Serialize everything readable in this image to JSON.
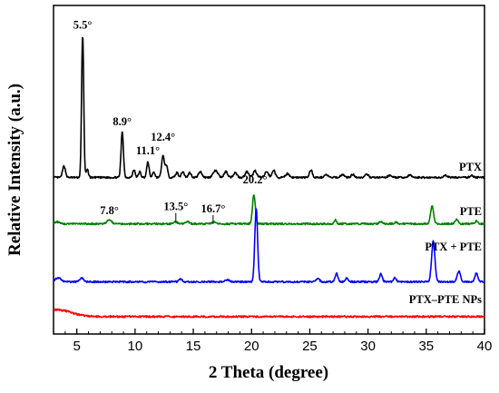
{
  "chart_data": {
    "type": "line",
    "xlabel": "2 Theta (degree)",
    "ylabel": "Relative Intensity (a.u.)",
    "xlim": [
      3,
      40
    ],
    "xticks": [
      "5",
      "10",
      "15",
      "20",
      "25",
      "30",
      "35",
      "40"
    ],
    "grid": false,
    "series": [
      {
        "name": "PTX",
        "color": "#000000",
        "baseline": 7.6,
        "peaks": [
          {
            "x": 3.9,
            "h": 0.6,
            "w": 0.12
          },
          {
            "x": 5.5,
            "h": 7.4,
            "w": 0.09
          },
          {
            "x": 5.9,
            "h": 0.4,
            "w": 0.1
          },
          {
            "x": 8.9,
            "h": 2.4,
            "w": 0.1
          },
          {
            "x": 9.9,
            "h": 0.4,
            "w": 0.1
          },
          {
            "x": 10.4,
            "h": 0.3,
            "w": 0.1
          },
          {
            "x": 11.1,
            "h": 0.8,
            "w": 0.1
          },
          {
            "x": 11.6,
            "h": 0.3,
            "w": 0.1
          },
          {
            "x": 12.4,
            "h": 1.1,
            "w": 0.12
          },
          {
            "x": 12.7,
            "h": 0.6,
            "w": 0.1
          },
          {
            "x": 13.6,
            "h": 0.25,
            "w": 0.12
          },
          {
            "x": 14.1,
            "h": 0.3,
            "w": 0.12
          },
          {
            "x": 14.7,
            "h": 0.25,
            "w": 0.12
          },
          {
            "x": 15.6,
            "h": 0.3,
            "w": 0.15
          },
          {
            "x": 16.9,
            "h": 0.35,
            "w": 0.2
          },
          {
            "x": 17.8,
            "h": 0.3,
            "w": 0.15
          },
          {
            "x": 18.6,
            "h": 0.25,
            "w": 0.15
          },
          {
            "x": 19.6,
            "h": 0.3,
            "w": 0.15
          },
          {
            "x": 20.3,
            "h": 0.35,
            "w": 0.15
          },
          {
            "x": 21.3,
            "h": 0.3,
            "w": 0.15
          },
          {
            "x": 21.9,
            "h": 0.4,
            "w": 0.12
          },
          {
            "x": 23.1,
            "h": 0.2,
            "w": 0.15
          },
          {
            "x": 25.1,
            "h": 0.4,
            "w": 0.12
          },
          {
            "x": 26.4,
            "h": 0.15,
            "w": 0.15
          },
          {
            "x": 27.8,
            "h": 0.15,
            "w": 0.15
          },
          {
            "x": 28.7,
            "h": 0.15,
            "w": 0.15
          },
          {
            "x": 29.9,
            "h": 0.15,
            "w": 0.15
          },
          {
            "x": 31.9,
            "h": 0.12,
            "w": 0.15
          },
          {
            "x": 33.6,
            "h": 0.12,
            "w": 0.15
          },
          {
            "x": 36.7,
            "h": 0.1,
            "w": 0.15
          },
          {
            "x": 38.9,
            "h": 0.1,
            "w": 0.15
          }
        ]
      },
      {
        "name": "PTE",
        "color": "#008000",
        "baseline": 5.2,
        "peaks": [
          {
            "x": 3.3,
            "h": 0.1,
            "w": 0.2
          },
          {
            "x": 7.8,
            "h": 0.22,
            "w": 0.18
          },
          {
            "x": 13.5,
            "h": 0.1,
            "w": 0.15
          },
          {
            "x": 14.5,
            "h": 0.12,
            "w": 0.15
          },
          {
            "x": 16.7,
            "h": 0.1,
            "w": 0.15
          },
          {
            "x": 20.2,
            "h": 1.5,
            "w": 0.12
          },
          {
            "x": 27.2,
            "h": 0.2,
            "w": 0.1
          },
          {
            "x": 31.1,
            "h": 0.12,
            "w": 0.12
          },
          {
            "x": 32.4,
            "h": 0.1,
            "w": 0.12
          },
          {
            "x": 35.5,
            "h": 0.9,
            "w": 0.13
          },
          {
            "x": 37.6,
            "h": 0.25,
            "w": 0.12
          },
          {
            "x": 39.3,
            "h": 0.15,
            "w": 0.12
          }
        ]
      },
      {
        "name": "PTX + PTE",
        "color": "#0000ff",
        "baseline": 2.2,
        "peaks": [
          {
            "x": 3.4,
            "h": 0.2,
            "w": 0.25
          },
          {
            "x": 5.4,
            "h": 0.2,
            "w": 0.15
          },
          {
            "x": 13.9,
            "h": 0.15,
            "w": 0.15
          },
          {
            "x": 17.9,
            "h": 0.12,
            "w": 0.15
          },
          {
            "x": 20.4,
            "h": 3.8,
            "w": 0.12
          },
          {
            "x": 25.7,
            "h": 0.15,
            "w": 0.15
          },
          {
            "x": 27.3,
            "h": 0.45,
            "w": 0.12
          },
          {
            "x": 28.2,
            "h": 0.2,
            "w": 0.12
          },
          {
            "x": 31.1,
            "h": 0.4,
            "w": 0.12
          },
          {
            "x": 32.3,
            "h": 0.2,
            "w": 0.12
          },
          {
            "x": 35.6,
            "h": 2.1,
            "w": 0.14
          },
          {
            "x": 37.8,
            "h": 0.55,
            "w": 0.14
          },
          {
            "x": 39.3,
            "h": 0.45,
            "w": 0.12
          }
        ]
      },
      {
        "name": "PTX–PTE NPs",
        "color": "#ff0000",
        "baseline": 0.4,
        "peaks": [
          {
            "x": 3.3,
            "h": 0.35,
            "w": 1.2
          }
        ]
      }
    ],
    "annotations": [
      {
        "text": "5.5°",
        "x": 5.5,
        "y": 15.3,
        "tick": false
      },
      {
        "text": "8.9°",
        "x": 8.9,
        "y": 10.3,
        "tick": false
      },
      {
        "text": "11.1°",
        "x": 11.1,
        "y": 8.8,
        "tick": false
      },
      {
        "text": "12.4°",
        "x": 12.4,
        "y": 9.5,
        "tick": false
      },
      {
        "text": "7.8°",
        "x": 7.8,
        "y": 5.7,
        "tick": false
      },
      {
        "text": "13.5°",
        "x": 13.5,
        "y": 5.9,
        "tick": true
      },
      {
        "text": "16.7°",
        "x": 16.7,
        "y": 5.8,
        "tick": true
      },
      {
        "text": "20.2°",
        "x": 20.3,
        "y": 7.3,
        "tick": false
      }
    ]
  }
}
